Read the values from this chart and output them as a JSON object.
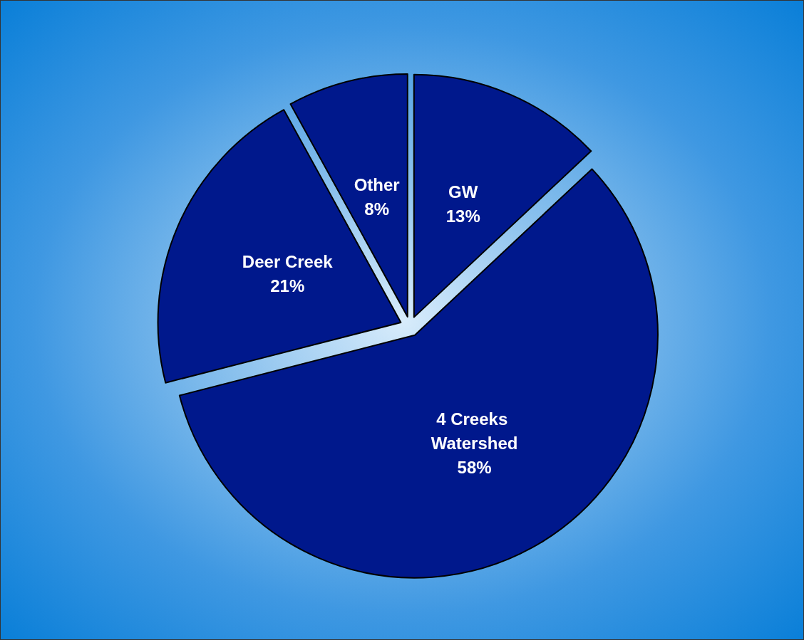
{
  "chart_data": {
    "type": "pie",
    "categories": [
      "GW",
      "4 Creeks Watershed",
      "Deer Creek",
      "Other"
    ],
    "values": [
      13,
      58,
      21,
      8
    ],
    "value_labels": [
      "13%",
      "58%",
      "21%",
      "8%"
    ],
    "colors": [
      "#00188c",
      "#00188c",
      "#00188c",
      "#00188c"
    ],
    "legend": false
  }
}
